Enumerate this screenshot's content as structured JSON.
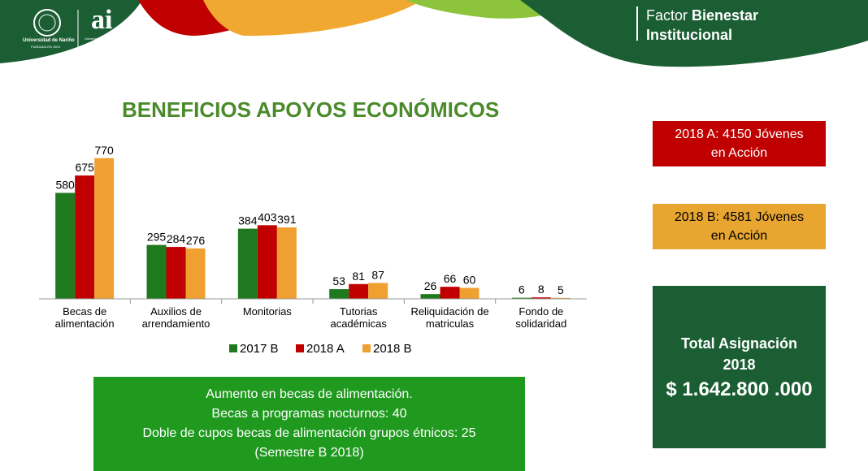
{
  "header": {
    "logo_udenar_name": "Universidad de Nariño",
    "logo_udenar_sub": "FUNDADA EN 1904",
    "logo_ai": "ai",
    "logo_ai_sub": "Universidad de Nariño",
    "factor_title_part1": "Factor ",
    "factor_title_bold1": "Bienestar",
    "factor_title_bold2": "Institucional"
  },
  "colors": {
    "green_2017b": "#1f7a1f",
    "red_2018a": "#c00000",
    "orange_2018b": "#f0a030",
    "title_green": "#4a8a2a",
    "total_box": "#1b5e34",
    "summary_box": "#1f9a1f"
  },
  "chart_data": {
    "type": "bar",
    "title": "BENEFICIOS APOYOS ECONÓMICOS",
    "categories": [
      [
        "Becas de",
        "alimentación"
      ],
      [
        "Auxilios de",
        "arrendamiento"
      ],
      [
        "Monitorias"
      ],
      [
        "Tutorias",
        "académicas"
      ],
      [
        "Reliquidación de",
        "matriculas"
      ],
      [
        "Fondo de",
        "solidaridad"
      ]
    ],
    "series": [
      {
        "name": "2017 B",
        "color": "#1f7a1f",
        "values": [
          580,
          295,
          384,
          53,
          26,
          6
        ]
      },
      {
        "name": "2018 A",
        "color": "#c00000",
        "values": [
          675,
          284,
          403,
          81,
          66,
          8
        ]
      },
      {
        "name": "2018 B",
        "color": "#f0a030",
        "values": [
          770,
          276,
          391,
          87,
          60,
          5
        ]
      }
    ],
    "ylim": [
      0,
      800
    ],
    "legend_position": "bottom",
    "grid": false
  },
  "info_boxes": {
    "box_2018a": [
      "2018 A: 4150 Jóvenes",
      "en Acción"
    ],
    "box_2018b": [
      "2018 B: 4581 Jóvenes",
      "en Acción"
    ],
    "total_label_line1": "Total Asignación",
    "total_label_line2": "2018",
    "total_amount": "$ 1.642.800 .000"
  },
  "summary": {
    "lines": [
      "Aumento en becas de alimentación.",
      "Becas a programas nocturnos: 40",
      "Doble de cupos  becas de alimentación  grupos étnicos: 25",
      "(Semestre B 2018)"
    ]
  }
}
